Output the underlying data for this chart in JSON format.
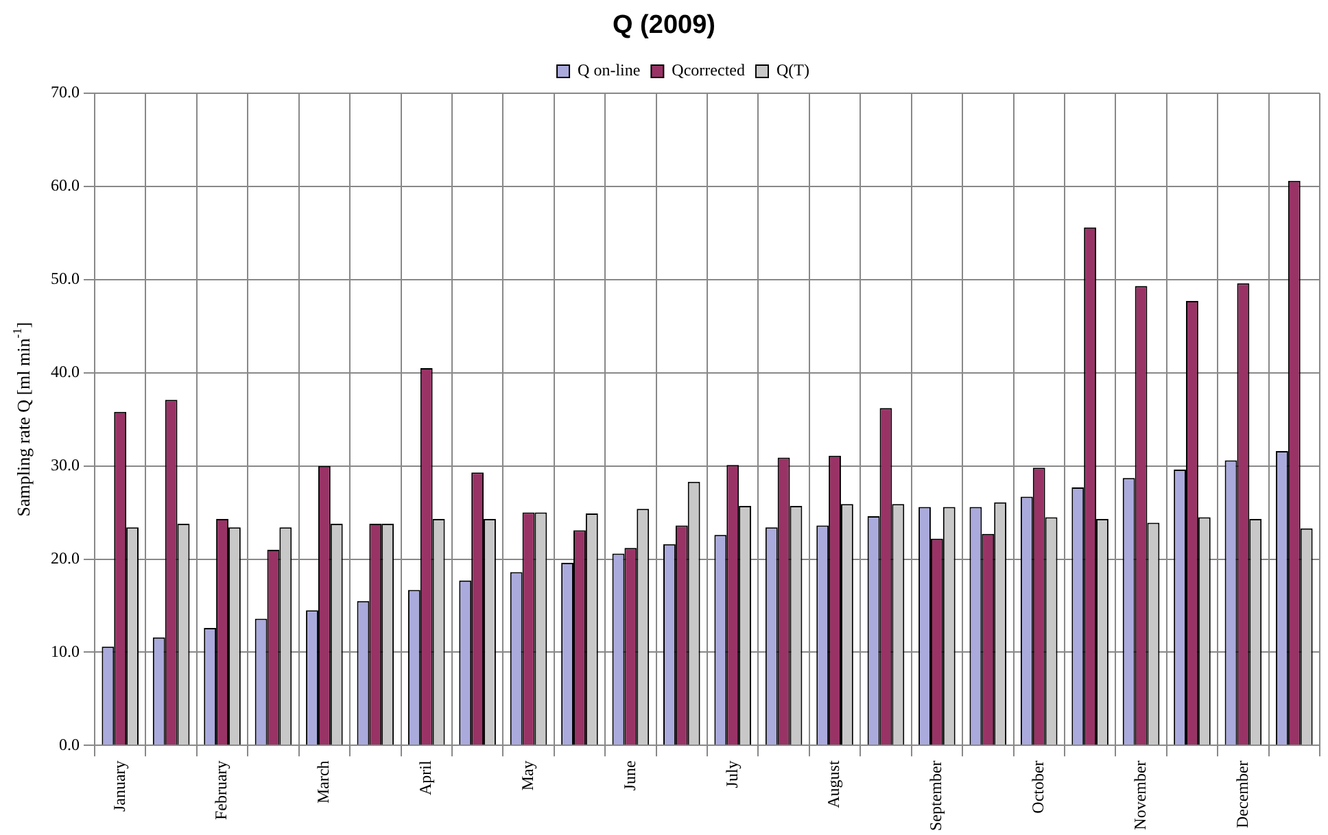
{
  "chart_data": {
    "type": "bar",
    "title": "Q (2009)",
    "ylabel": "Sampling rate Q [ml min$^{-1}$]",
    "categories": [
      "January",
      null,
      "February",
      null,
      "March",
      null,
      "April",
      null,
      "May",
      null,
      "June",
      null,
      "July",
      null,
      "August",
      null,
      "September",
      null,
      "October",
      null,
      "November",
      null,
      "December",
      null
    ],
    "series": [
      {
        "name": "Q on-line",
        "color": "#aaaadd",
        "values": [
          10.6,
          11.6,
          12.6,
          13.6,
          14.5,
          15.5,
          16.7,
          17.7,
          18.6,
          19.6,
          20.6,
          21.6,
          22.6,
          23.4,
          23.6,
          24.6,
          25.6,
          25.6,
          26.7,
          27.7,
          28.7,
          29.6,
          30.6,
          31.6
        ]
      },
      {
        "name": "Qcorrected",
        "color": "#993366",
        "values": [
          35.8,
          37.1,
          24.3,
          21.0,
          30.0,
          23.8,
          40.5,
          29.3,
          25.0,
          23.1,
          21.2,
          23.6,
          30.1,
          30.9,
          31.1,
          36.2,
          22.2,
          22.7,
          29.8,
          55.6,
          49.3,
          47.7,
          49.6,
          60.6
        ]
      },
      {
        "name": "Q(T)",
        "color": "#c8c8c8",
        "values": [
          23.4,
          23.8,
          23.4,
          23.4,
          23.8,
          23.8,
          24.3,
          24.3,
          25.0,
          24.9,
          25.4,
          28.3,
          25.7,
          25.7,
          25.9,
          25.9,
          25.6,
          26.1,
          24.5,
          24.3,
          23.9,
          24.5,
          24.3,
          23.3
        ]
      }
    ],
    "ylim": [
      0,
      70
    ],
    "yticks": [
      {
        "value": 0,
        "label": "0.0"
      },
      {
        "value": 10,
        "label": "10.0"
      },
      {
        "value": 20,
        "label": "20.0"
      },
      {
        "value": 30,
        "label": "30.0"
      },
      {
        "value": 40,
        "label": "40.0"
      },
      {
        "value": 50,
        "label": "50.0"
      },
      {
        "value": 60,
        "label": "60.0"
      },
      {
        "value": 70,
        "label": "70.0"
      }
    ],
    "grid": true,
    "legend": "top"
  }
}
